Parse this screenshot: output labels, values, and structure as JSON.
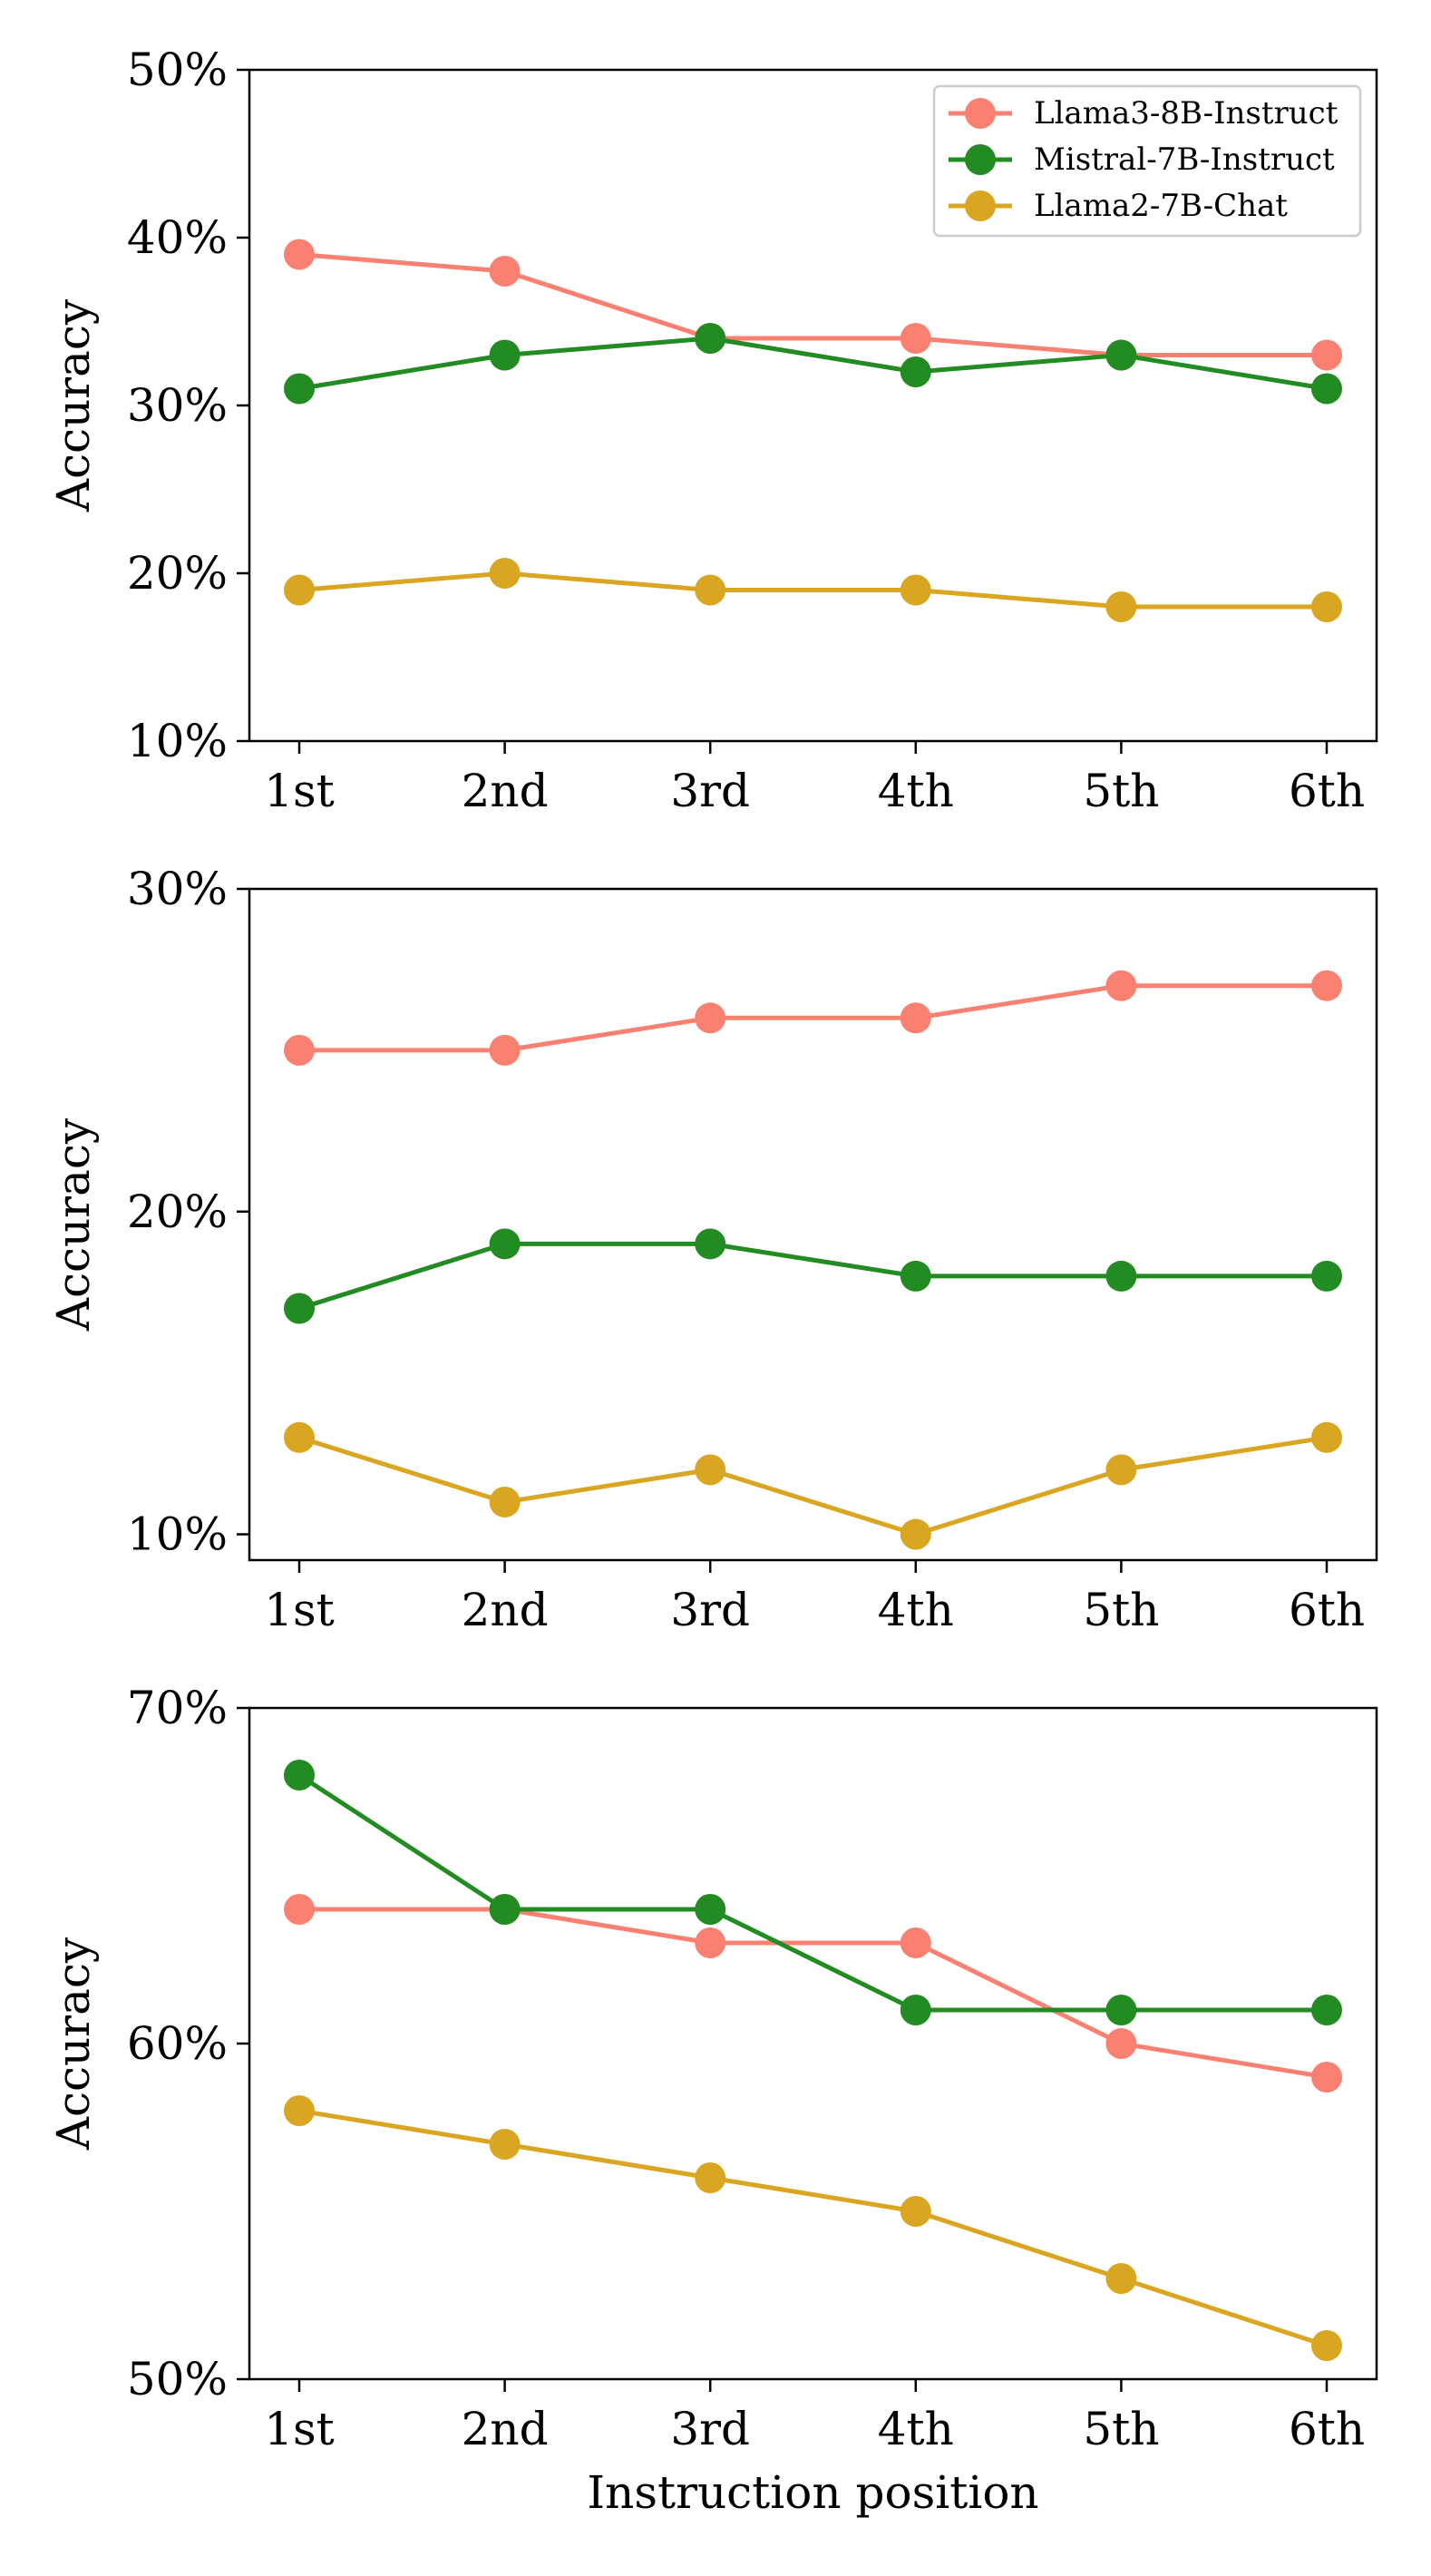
{
  "chart_data": [
    {
      "type": "line",
      "categories": [
        "1st",
        "2nd",
        "3rd",
        "4th",
        "5th",
        "6th"
      ],
      "ylabel": "Accuracy",
      "xlabel": "",
      "ylim": [
        10,
        50
      ],
      "yticks": [
        10,
        20,
        30,
        40,
        50
      ],
      "ytick_labels": [
        "10%",
        "20%",
        "30%",
        "40%",
        "50%"
      ],
      "grid": false,
      "legend": "top-right",
      "series": [
        {
          "name": "Llama3-8B-Instruct",
          "color": "#FA8072",
          "values": [
            39,
            38,
            34,
            34,
            33,
            33
          ]
        },
        {
          "name": "Mistral-7B-Instruct",
          "color": "#228B22",
          "values": [
            31,
            33,
            34,
            32,
            33,
            31
          ]
        },
        {
          "name": "Llama2-7B-Chat",
          "color": "#DAA520",
          "values": [
            19,
            20,
            19,
            19,
            18,
            18
          ]
        }
      ]
    },
    {
      "type": "line",
      "categories": [
        "1st",
        "2nd",
        "3rd",
        "4th",
        "5th",
        "6th"
      ],
      "ylabel": "Accuracy",
      "xlabel": "",
      "ylim": [
        9.2,
        30
      ],
      "yticks": [
        10,
        20,
        30
      ],
      "ytick_labels": [
        "10%",
        "20%",
        "30%"
      ],
      "grid": false,
      "legend": "none",
      "series": [
        {
          "name": "Llama3-8B-Instruct",
          "color": "#FA8072",
          "values": [
            25,
            25,
            26,
            26,
            27,
            27
          ]
        },
        {
          "name": "Mistral-7B-Instruct",
          "color": "#228B22",
          "values": [
            17,
            19,
            19,
            18,
            18,
            18
          ]
        },
        {
          "name": "Llama2-7B-Chat",
          "color": "#DAA520",
          "values": [
            13,
            11,
            12,
            10,
            12,
            13
          ]
        }
      ]
    },
    {
      "type": "line",
      "categories": [
        "1st",
        "2nd",
        "3rd",
        "4th",
        "5th",
        "6th"
      ],
      "ylabel": "Accuracy",
      "xlabel": "Instruction position",
      "ylim": [
        50,
        70
      ],
      "yticks": [
        50,
        60,
        70
      ],
      "ytick_labels": [
        "50%",
        "60%",
        "70%"
      ],
      "grid": false,
      "legend": "none",
      "series": [
        {
          "name": "Llama3-8B-Instruct",
          "color": "#FA8072",
          "values": [
            64,
            64,
            63,
            63,
            60,
            59
          ]
        },
        {
          "name": "Mistral-7B-Instruct",
          "color": "#228B22",
          "values": [
            68,
            64,
            64,
            61,
            61,
            61
          ]
        },
        {
          "name": "Llama2-7B-Chat",
          "color": "#DAA520",
          "values": [
            58,
            57,
            56,
            55,
            53,
            51
          ]
        }
      ]
    }
  ]
}
